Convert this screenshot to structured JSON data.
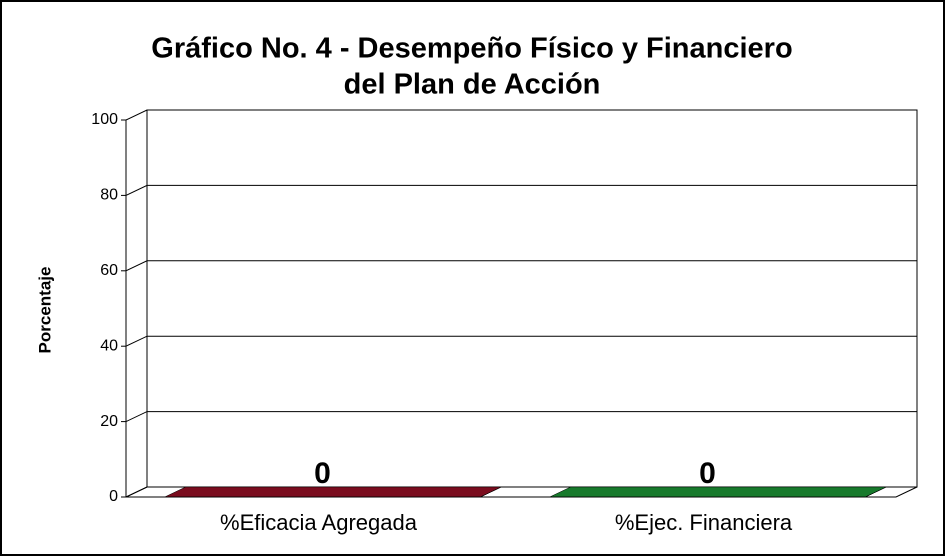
{
  "chart_data": {
    "type": "bar3d",
    "title": [
      "Gráfico No. 4 - Desempeño Físico y Financiero",
      "del Plan de Acción"
    ],
    "y_label": "Porcentaje",
    "categories": [
      "%Eficacia Agregada",
      "%Ejec. Financiera"
    ],
    "values": [
      0,
      0
    ],
    "colors": [
      "#7a0c1e",
      "#177a2c"
    ],
    "ylim": [
      0,
      100
    ],
    "yticks": [
      0,
      20,
      40,
      60,
      80,
      100
    ],
    "grid": true
  }
}
